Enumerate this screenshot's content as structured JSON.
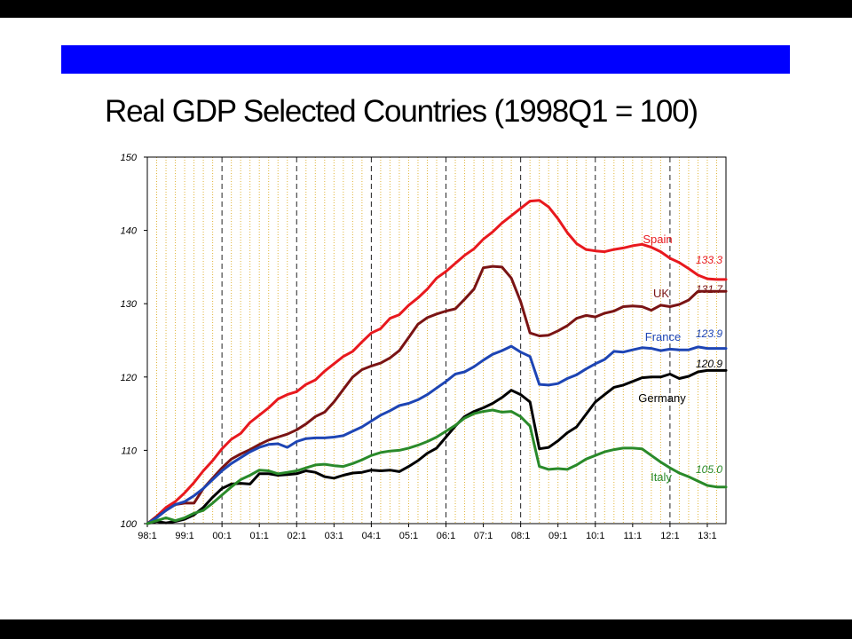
{
  "slide": {
    "title": "Real GDP Selected Countries (1998Q1 = 100)"
  },
  "chart_data": {
    "type": "line",
    "title": "Real GDP Selected Countries (1998Q1 = 100)",
    "xlabel": "",
    "ylabel": "",
    "ylim": [
      100,
      150
    ],
    "yticks": [
      100,
      110,
      120,
      130,
      140,
      150
    ],
    "x_start": "98:1",
    "x_tick_labels": [
      "98:1",
      "99:1",
      "00:1",
      "01:1",
      "02:1",
      "03:1",
      "04:1",
      "05:1",
      "06:1",
      "07:1",
      "08:1",
      "09:1",
      "10:1",
      "11:1",
      "12:1",
      "13:1"
    ],
    "quarters": 63,
    "grid": {
      "quarterly": "dotted-orange",
      "yearly": "dashed-black-alternate"
    },
    "series": [
      {
        "name": "Spain",
        "color": "#e8191e",
        "end_label": "133.3",
        "values": [
          100,
          101,
          102.2,
          103,
          104.2,
          105.6,
          107.2,
          108.6,
          110.2,
          111.5,
          112.3,
          113.8,
          114.8,
          115.8,
          117,
          117.6,
          118,
          119,
          119.6,
          120.8,
          121.8,
          122.8,
          123.5,
          124.8,
          126,
          126.6,
          128,
          128.5,
          129.8,
          130.8,
          132,
          133.5,
          134.4,
          135.5,
          136.6,
          137.5,
          138.8,
          139.8,
          141,
          142,
          143,
          144,
          144.1,
          143.2,
          141.6,
          139.7,
          138.2,
          137.4,
          137.2,
          137.1,
          137.4,
          137.6,
          137.9,
          138.1,
          137.7,
          137.1,
          136.2,
          135.6,
          134.8,
          133.9,
          133.4,
          133.3,
          133.3
        ]
      },
      {
        "name": "UK",
        "color": "#7a1414",
        "end_label": "131.7",
        "values": [
          100,
          100.9,
          101.8,
          102.6,
          102.8,
          102.8,
          104.8,
          106.2,
          107.6,
          108.8,
          109.5,
          110.1,
          110.8,
          111.4,
          111.8,
          112.2,
          112.8,
          113.6,
          114.6,
          115.2,
          116.6,
          118.3,
          120,
          121,
          121.5,
          121.9,
          122.6,
          123.6,
          125.4,
          127.2,
          128.1,
          128.6,
          129,
          129.3,
          130.6,
          132,
          134.9,
          135.1,
          135,
          133.5,
          130.3,
          126,
          125.6,
          125.7,
          126.3,
          127,
          128,
          128.4,
          128.2,
          128.7,
          129,
          129.6,
          129.7,
          129.6,
          129.1,
          129.8,
          129.6,
          129.9,
          130.5,
          131.7,
          131.7,
          131.7,
          131.7
        ]
      },
      {
        "name": "France",
        "color": "#1e45b4",
        "end_label": "123.9",
        "values": [
          100,
          100.8,
          101.8,
          102.6,
          103,
          103.8,
          104.8,
          106,
          107.2,
          108.2,
          109,
          109.8,
          110.4,
          110.8,
          110.9,
          110.4,
          111.2,
          111.6,
          111.7,
          111.7,
          111.8,
          112,
          112.6,
          113.2,
          114,
          114.8,
          115.4,
          116.1,
          116.4,
          116.9,
          117.6,
          118.5,
          119.4,
          120.4,
          120.7,
          121.4,
          122.3,
          123.1,
          123.6,
          124.2,
          123.4,
          122.8,
          119,
          118.9,
          119.1,
          119.8,
          120.3,
          121.1,
          121.8,
          122.4,
          123.5,
          123.4,
          123.7,
          124,
          123.9,
          123.6,
          123.8,
          123.7,
          123.7,
          124.1,
          123.9,
          123.9,
          123.9
        ]
      },
      {
        "name": "Germany",
        "color": "#000000",
        "end_label": "120.9",
        "values": [
          100,
          100.3,
          100.1,
          100.3,
          100.6,
          101.2,
          102.2,
          103.6,
          104.8,
          105.4,
          105.5,
          105.4,
          106.8,
          106.8,
          106.6,
          106.7,
          106.8,
          107.2,
          107,
          106.4,
          106.2,
          106.6,
          106.9,
          107,
          107.3,
          107.2,
          107.3,
          107.1,
          107.8,
          108.6,
          109.6,
          110.3,
          111.8,
          113.3,
          114.6,
          115.3,
          115.8,
          116.4,
          117.2,
          118.2,
          117.6,
          116.6,
          110.2,
          110.4,
          111.3,
          112.4,
          113.2,
          114.9,
          116.6,
          117.6,
          118.6,
          118.9,
          119.4,
          119.9,
          120,
          120,
          120.4,
          119.8,
          120.1,
          120.7,
          120.9,
          120.9,
          120.9
        ]
      },
      {
        "name": "Italy",
        "color": "#2a8a2a",
        "end_label": "105.0",
        "values": [
          100,
          100.4,
          100.8,
          100.4,
          100.8,
          101.4,
          101.8,
          102.8,
          103.9,
          105,
          106,
          106.6,
          107.3,
          107.2,
          106.8,
          107,
          107.2,
          107.6,
          108,
          108.1,
          107.9,
          107.8,
          108.2,
          108.7,
          109.3,
          109.7,
          109.9,
          110,
          110.3,
          110.7,
          111.2,
          111.8,
          112.6,
          113.4,
          114.4,
          115,
          115.3,
          115.5,
          115.2,
          115.3,
          114.6,
          113.3,
          107.8,
          107.4,
          107.5,
          107.4,
          108,
          108.8,
          109.3,
          109.8,
          110.1,
          110.3,
          110.3,
          110.2,
          109.3,
          108.4,
          107.6,
          106.9,
          106.4,
          105.8,
          105.2,
          105.0,
          105.0
        ]
      }
    ]
  }
}
